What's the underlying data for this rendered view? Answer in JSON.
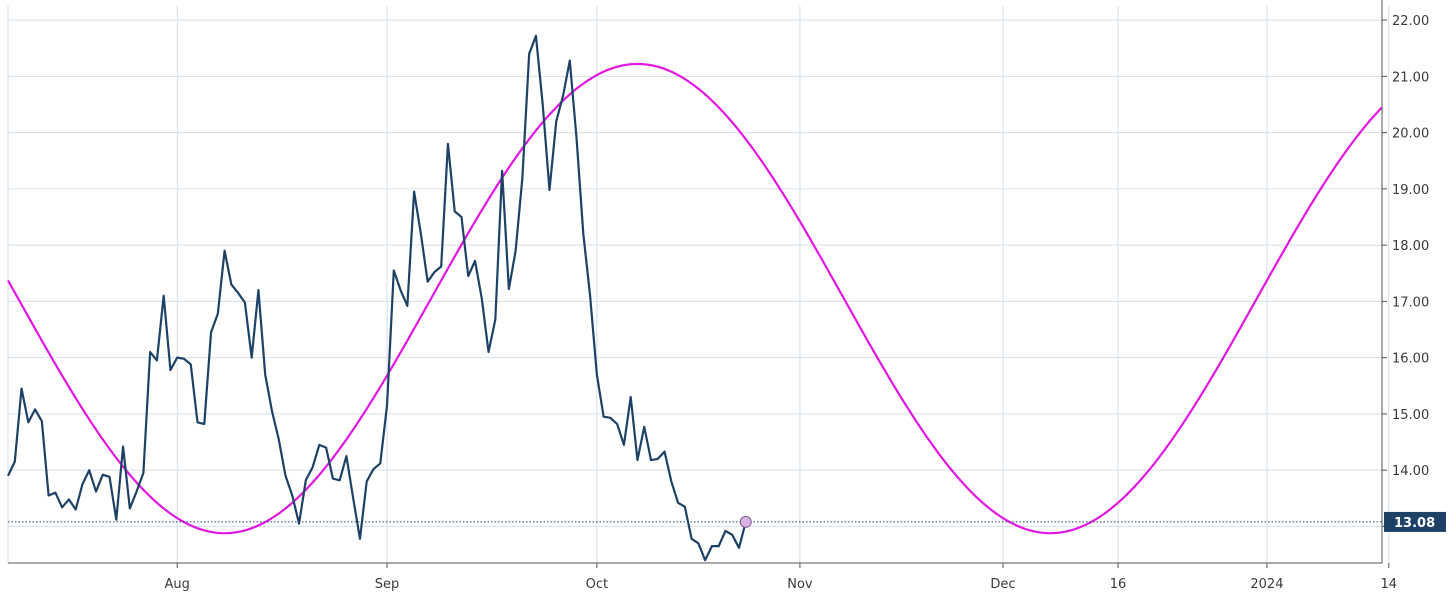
{
  "chart_data": {
    "type": "line",
    "title": "",
    "xlabel": "",
    "ylabel": "",
    "ylim": [
      12.35,
      22.25
    ],
    "xlim": [
      "2023-07-07",
      "2024-01-26"
    ],
    "grid": true,
    "y_tick_labels": [
      "22.00",
      "21.00",
      "20.00",
      "19.00",
      "18.00",
      "17.00",
      "16.00",
      "15.00",
      "14.00",
      "13.00"
    ],
    "x_tick_labels": [
      {
        "label": "Aug",
        "date": "2023-08-01"
      },
      {
        "label": "Sep",
        "date": "2023-09-01"
      },
      {
        "label": "Oct",
        "date": "2023-10-02"
      },
      {
        "label": "Nov",
        "date": "2023-11-01"
      },
      {
        "label": "Dec",
        "date": "2023-12-01"
      },
      {
        "label": "16",
        "date": "2023-12-18"
      },
      {
        "label": "2024",
        "date": "2024-01-09"
      },
      {
        "label": "14",
        "date": "2024-01-27"
      }
    ],
    "last_value_label": "13.08",
    "last_value": 13.08,
    "colors": {
      "price": "#1d4266",
      "cycle": "#e317e3",
      "grid": "#d3e0ea",
      "last_label_bg": "#1d4266",
      "marker": "#d8b4e6"
    },
    "series": [
      {
        "key": "price",
        "points": [
          [
            "2023-07-07",
            13.9
          ],
          [
            "2023-07-08",
            14.15
          ],
          [
            "2023-07-09",
            15.45
          ],
          [
            "2023-07-10",
            14.85
          ],
          [
            "2023-07-11",
            15.08
          ],
          [
            "2023-07-12",
            14.87
          ],
          [
            "2023-07-13",
            13.55
          ],
          [
            "2023-07-14",
            13.6
          ],
          [
            "2023-07-15",
            13.34
          ],
          [
            "2023-07-16",
            13.48
          ],
          [
            "2023-07-17",
            13.3
          ],
          [
            "2023-07-18",
            13.75
          ],
          [
            "2023-07-19",
            14.0
          ],
          [
            "2023-07-20",
            13.62
          ],
          [
            "2023-07-21",
            13.92
          ],
          [
            "2023-07-22",
            13.88
          ],
          [
            "2023-07-23",
            13.12
          ],
          [
            "2023-07-24",
            14.42
          ],
          [
            "2023-07-25",
            13.32
          ],
          [
            "2023-07-26",
            13.62
          ],
          [
            "2023-07-27",
            13.95
          ],
          [
            "2023-07-28",
            16.1
          ],
          [
            "2023-07-29",
            15.95
          ],
          [
            "2023-07-30",
            17.1
          ],
          [
            "2023-07-31",
            15.78
          ],
          [
            "2023-08-01",
            16.0
          ],
          [
            "2023-08-02",
            15.98
          ],
          [
            "2023-08-03",
            15.88
          ],
          [
            "2023-08-04",
            14.85
          ],
          [
            "2023-08-05",
            14.82
          ],
          [
            "2023-08-06",
            16.45
          ],
          [
            "2023-08-07",
            16.78
          ],
          [
            "2023-08-08",
            17.9
          ],
          [
            "2023-08-09",
            17.3
          ],
          [
            "2023-08-10",
            17.15
          ],
          [
            "2023-08-11",
            16.98
          ],
          [
            "2023-08-12",
            16.0
          ],
          [
            "2023-08-13",
            17.2
          ],
          [
            "2023-08-14",
            15.7
          ],
          [
            "2023-08-15",
            15.05
          ],
          [
            "2023-08-16",
            14.55
          ],
          [
            "2023-08-17",
            13.9
          ],
          [
            "2023-08-18",
            13.55
          ],
          [
            "2023-08-19",
            13.05
          ],
          [
            "2023-08-20",
            13.82
          ],
          [
            "2023-08-21",
            14.05
          ],
          [
            "2023-08-22",
            14.45
          ],
          [
            "2023-08-23",
            14.4
          ],
          [
            "2023-08-24",
            13.85
          ],
          [
            "2023-08-25",
            13.82
          ],
          [
            "2023-08-26",
            14.25
          ],
          [
            "2023-08-27",
            13.5
          ],
          [
            "2023-08-28",
            12.78
          ],
          [
            "2023-08-29",
            13.8
          ],
          [
            "2023-08-30",
            14.02
          ],
          [
            "2023-08-31",
            14.12
          ],
          [
            "2023-09-01",
            15.15
          ],
          [
            "2023-09-02",
            17.55
          ],
          [
            "2023-09-03",
            17.2
          ],
          [
            "2023-09-04",
            16.92
          ],
          [
            "2023-09-05",
            18.95
          ],
          [
            "2023-09-06",
            18.2
          ],
          [
            "2023-09-07",
            17.35
          ],
          [
            "2023-09-08",
            17.52
          ],
          [
            "2023-09-09",
            17.62
          ],
          [
            "2023-09-10",
            19.8
          ],
          [
            "2023-09-11",
            18.6
          ],
          [
            "2023-09-12",
            18.5
          ],
          [
            "2023-09-13",
            17.45
          ],
          [
            "2023-09-14",
            17.72
          ],
          [
            "2023-09-15",
            17.05
          ],
          [
            "2023-09-16",
            16.1
          ],
          [
            "2023-09-17",
            16.68
          ],
          [
            "2023-09-18",
            19.32
          ],
          [
            "2023-09-19",
            17.22
          ],
          [
            "2023-09-20",
            17.9
          ],
          [
            "2023-09-21",
            19.2
          ],
          [
            "2023-09-22",
            21.4
          ],
          [
            "2023-09-23",
            21.72
          ],
          [
            "2023-09-24",
            20.5
          ],
          [
            "2023-09-25",
            18.98
          ],
          [
            "2023-09-26",
            20.2
          ],
          [
            "2023-09-27",
            20.65
          ],
          [
            "2023-09-28",
            21.28
          ],
          [
            "2023-09-29",
            19.9
          ],
          [
            "2023-09-30",
            18.2
          ],
          [
            "2023-10-01",
            17.1
          ],
          [
            "2023-10-02",
            15.7
          ],
          [
            "2023-10-03",
            14.95
          ],
          [
            "2023-10-04",
            14.93
          ],
          [
            "2023-10-05",
            14.82
          ],
          [
            "2023-10-06",
            14.45
          ],
          [
            "2023-10-07",
            15.3
          ],
          [
            "2023-10-08",
            14.18
          ],
          [
            "2023-10-09",
            14.77
          ],
          [
            "2023-10-10",
            14.18
          ],
          [
            "2023-10-11",
            14.2
          ],
          [
            "2023-10-12",
            14.33
          ],
          [
            "2023-10-13",
            13.8
          ],
          [
            "2023-10-14",
            13.42
          ],
          [
            "2023-10-15",
            13.35
          ],
          [
            "2023-10-16",
            12.78
          ],
          [
            "2023-10-17",
            12.7
          ],
          [
            "2023-10-18",
            12.4
          ],
          [
            "2023-10-19",
            12.65
          ],
          [
            "2023-10-20",
            12.65
          ],
          [
            "2023-10-21",
            12.92
          ],
          [
            "2023-10-22",
            12.85
          ],
          [
            "2023-10-23",
            12.62
          ],
          [
            "2023-10-24",
            13.08
          ]
        ]
      },
      {
        "key": "cycle",
        "type": "sinusoid",
        "x_start": "2023-07-07",
        "x_end": "2024-01-26",
        "minimum": 12.88,
        "maximum": 21.22,
        "trough_dates": [
          "2023-08-08",
          "2023-12-09"
        ],
        "peak_dates": [
          "2023-10-08",
          "2024-02-07"
        ],
        "period_days": 122
      }
    ],
    "last_marker": {
      "date": "2023-10-24",
      "value": 13.08
    }
  }
}
